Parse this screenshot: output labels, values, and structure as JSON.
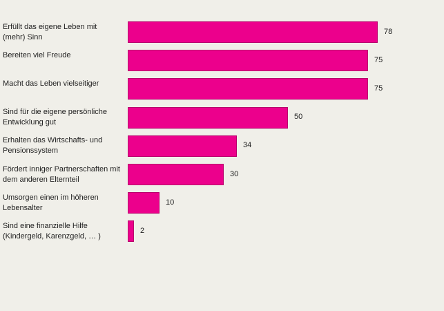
{
  "chart_data": {
    "type": "bar",
    "orientation": "horizontal",
    "title": "",
    "xlabel": "",
    "ylabel": "",
    "xlim": [
      0,
      78
    ],
    "grid": false,
    "bar_color": "#ec008c",
    "categories": [
      "Erfüllt das eigene Leben mit (mehr) Sinn",
      "Bereiten viel Freude",
      "Macht das Leben vielseitiger",
      "Sind für die eigene persönliche Entwicklung gut",
      "Erhalten das Wirtschafts- und Pensionssystem",
      "Fördert inniger Partnerschaften mit dem anderen Elternteil",
      "Umsorgen einen im höheren Lebensalter",
      "Sind eine finanzielle Hilfe (Kindergeld, Karenzgeld, … )"
    ],
    "values": [
      78,
      75,
      75,
      50,
      34,
      30,
      10,
      2
    ]
  }
}
